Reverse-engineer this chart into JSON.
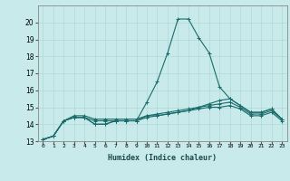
{
  "title": "",
  "xlabel": "Humidex (Indice chaleur)",
  "ylabel": "",
  "bg_color": "#c8eaea",
  "grid_color": "#b0d8d8",
  "line_color": "#1a6b6b",
  "xlim": [
    -0.5,
    23.5
  ],
  "ylim": [
    13,
    21
  ],
  "yticks": [
    13,
    14,
    15,
    16,
    17,
    18,
    19,
    20
  ],
  "xtick_labels": [
    "0",
    "1",
    "2",
    "3",
    "4",
    "5",
    "6",
    "7",
    "8",
    "9",
    "10",
    "11",
    "12",
    "13",
    "14",
    "15",
    "16",
    "17",
    "18",
    "19",
    "20",
    "21",
    "22",
    "23"
  ],
  "series": [
    [
      13.1,
      13.3,
      14.2,
      14.4,
      14.4,
      14.0,
      14.0,
      14.2,
      14.2,
      14.2,
      15.3,
      16.5,
      18.2,
      20.2,
      20.2,
      19.1,
      18.2,
      16.2,
      15.5,
      15.1,
      14.7,
      14.7,
      14.9,
      14.3
    ],
    [
      13.1,
      13.3,
      14.2,
      14.5,
      14.5,
      14.3,
      14.3,
      14.3,
      14.3,
      14.3,
      14.5,
      14.5,
      14.6,
      14.7,
      14.8,
      15.0,
      15.2,
      15.4,
      15.5,
      15.1,
      14.7,
      14.7,
      14.9,
      14.3
    ],
    [
      13.1,
      13.3,
      14.2,
      14.4,
      14.4,
      14.0,
      14.0,
      14.2,
      14.2,
      14.2,
      14.5,
      14.6,
      14.7,
      14.8,
      14.9,
      15.0,
      15.1,
      15.2,
      15.3,
      15.0,
      14.6,
      14.6,
      14.8,
      14.3
    ],
    [
      13.1,
      13.3,
      14.2,
      14.4,
      14.4,
      14.2,
      14.2,
      14.2,
      14.2,
      14.2,
      14.4,
      14.5,
      14.6,
      14.7,
      14.8,
      14.9,
      15.0,
      15.0,
      15.1,
      14.9,
      14.5,
      14.5,
      14.7,
      14.2
    ]
  ]
}
